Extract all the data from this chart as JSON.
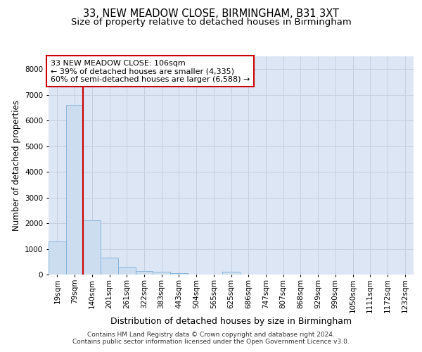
{
  "title1": "33, NEW MEADOW CLOSE, BIRMINGHAM, B31 3XT",
  "title2": "Size of property relative to detached houses in Birmingham",
  "xlabel": "Distribution of detached houses by size in Birmingham",
  "ylabel": "Number of detached properties",
  "categories": [
    "19sqm",
    "79sqm",
    "140sqm",
    "201sqm",
    "261sqm",
    "322sqm",
    "383sqm",
    "443sqm",
    "504sqm",
    "565sqm",
    "625sqm",
    "686sqm",
    "747sqm",
    "807sqm",
    "868sqm",
    "929sqm",
    "990sqm",
    "1050sqm",
    "1111sqm",
    "1172sqm",
    "1232sqm"
  ],
  "values": [
    1300,
    6600,
    2100,
    650,
    300,
    130,
    100,
    50,
    0,
    0,
    100,
    0,
    0,
    0,
    0,
    0,
    0,
    0,
    0,
    0,
    0
  ],
  "bar_color": "#ccddf0",
  "bar_edge_color": "#7fafd8",
  "vline_x": 1.5,
  "vline_color": "#cc0000",
  "annotation_text": "33 NEW MEADOW CLOSE: 106sqm\n← 39% of detached houses are smaller (4,335)\n60% of semi-detached houses are larger (6,588) →",
  "annotation_box_facecolor": "#ffffff",
  "annotation_box_edgecolor": "#cc0000",
  "ylim_max": 8500,
  "yticks": [
    0,
    1000,
    2000,
    3000,
    4000,
    5000,
    6000,
    7000,
    8000
  ],
  "grid_color": "#c5cfe0",
  "background_color": "#dce6f5",
  "footer1": "Contains HM Land Registry data © Crown copyright and database right 2024.",
  "footer2": "Contains public sector information licensed under the Open Government Licence v3.0.",
  "title_fontsize": 10.5,
  "subtitle_fontsize": 9.5,
  "ylabel_fontsize": 8.5,
  "xlabel_fontsize": 9,
  "tick_fontsize": 7.5,
  "annotation_fontsize": 8,
  "footer_fontsize": 6.5
}
